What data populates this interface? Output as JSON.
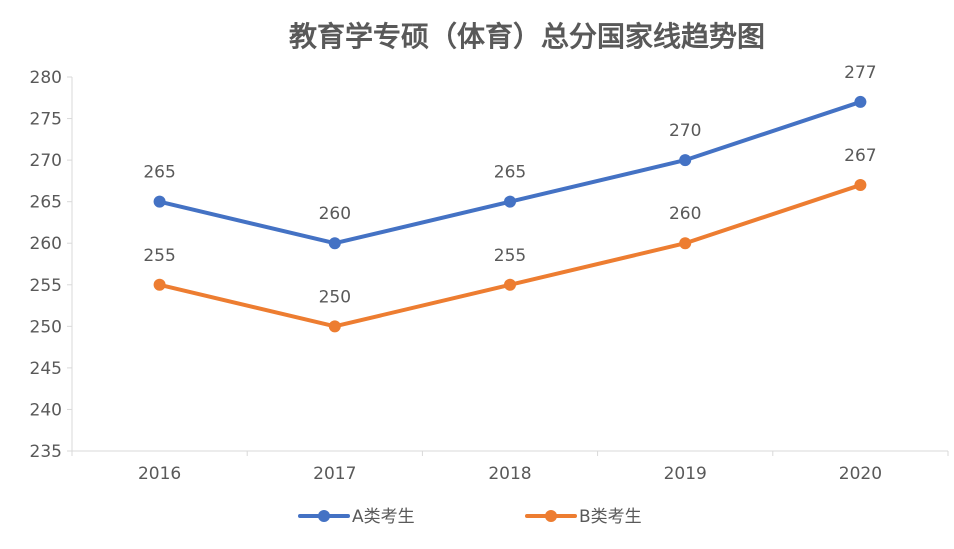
{
  "chart_data": {
    "type": "line",
    "title": "教育学专硕（体育）总分国家线趋势图",
    "xlabel": "",
    "ylabel": "",
    "categories": [
      "2016",
      "2017",
      "2018",
      "2019",
      "2020"
    ],
    "ylim": [
      235,
      280
    ],
    "ytick_step": 5,
    "grid": false,
    "legend_position": "bottom",
    "series": [
      {
        "name": "A类考生",
        "values": [
          265,
          260,
          265,
          270,
          277
        ],
        "color": "#4472C4"
      },
      {
        "name": "B类考生",
        "values": [
          255,
          250,
          255,
          260,
          267
        ],
        "color": "#ED7D31"
      }
    ]
  }
}
